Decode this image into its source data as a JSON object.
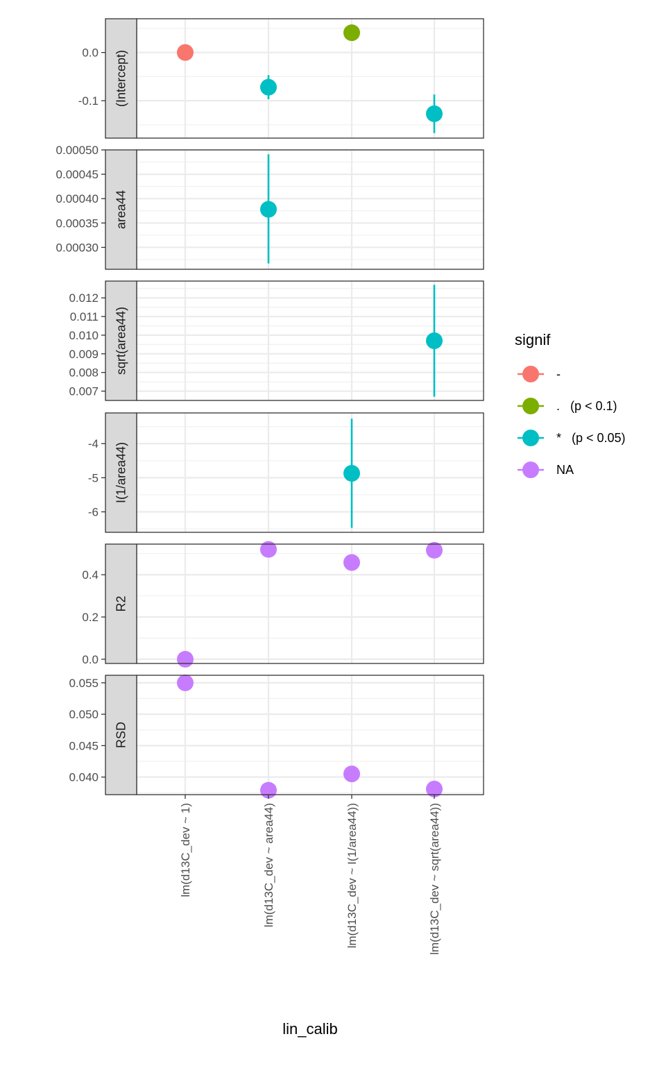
{
  "colors": {
    "-": "#F8766D",
    ".   (p < 0.1)": "#7CAE00",
    "*   (p < 0.05)": "#00BFC4",
    "NA": "#C77CFF"
  },
  "legend": {
    "title": "signif",
    "items": [
      "-",
      ".   (p < 0.1)",
      "*   (p < 0.05)",
      "NA"
    ]
  },
  "chart_data": {
    "type": "scatter",
    "xlabel": "lin_calib",
    "categories": [
      "lm(d13C_dev ~ 1)",
      "lm(d13C_dev ~ area44)",
      "lm(d13C_dev ~ I(1/area44))",
      "lm(d13C_dev ~ sqrt(area44))"
    ],
    "panels": [
      {
        "label": "(Intercept)",
        "ylim": [
          -0.1775,
          0.07
        ],
        "yticks": [
          -0.1,
          0.0
        ],
        "yticklabels": [
          "-0.1",
          "0.0"
        ],
        "points": [
          {
            "x": "lm(d13C_dev ~ 1)",
            "y": 0.0,
            "signif": "-"
          },
          {
            "x": "lm(d13C_dev ~ area44)",
            "y": -0.072,
            "lo": -0.097,
            "hi": -0.047,
            "signif": "*   (p < 0.05)"
          },
          {
            "x": "lm(d13C_dev ~ I(1/area44))",
            "y": 0.041,
            "signif": ".   (p < 0.1)"
          },
          {
            "x": "lm(d13C_dev ~ sqrt(area44))",
            "y": -0.127,
            "lo": -0.167,
            "hi": -0.087,
            "signif": "*   (p < 0.05)"
          }
        ]
      },
      {
        "label": "area44",
        "ylim": [
          0.000255,
          0.0005
        ],
        "yticks": [
          0.0003,
          0.00035,
          0.0004,
          0.00045,
          0.0005
        ],
        "yticklabels": [
          "0.00030",
          "0.00035",
          "0.00040",
          "0.00045",
          "0.00050"
        ],
        "points": [
          {
            "x": "lm(d13C_dev ~ area44)",
            "y": 0.000378,
            "lo": 0.000267,
            "hi": 0.000491,
            "signif": "*   (p < 0.05)"
          }
        ]
      },
      {
        "label": "sqrt(area44)",
        "ylim": [
          0.0065,
          0.0129
        ],
        "yticks": [
          0.007,
          0.008,
          0.009,
          0.01,
          0.011,
          0.012
        ],
        "yticklabels": [
          "0.007",
          "0.008",
          "0.009",
          "0.010",
          "0.011",
          "0.012"
        ],
        "points": [
          {
            "x": "lm(d13C_dev ~ sqrt(area44))",
            "y": 0.0097,
            "lo": 0.0067,
            "hi": 0.0127,
            "signif": "*   (p < 0.05)"
          }
        ]
      },
      {
        "label": "I(1/area44)",
        "ylim": [
          -6.6,
          -3.1
        ],
        "yticks": [
          -6,
          -5,
          -4
        ],
        "yticklabels": [
          "-6",
          "-5",
          "-4"
        ],
        "points": [
          {
            "x": "lm(d13C_dev ~ I(1/area44))",
            "y": -4.87,
            "lo": -6.47,
            "hi": -3.27,
            "signif": "*   (p < 0.05)"
          }
        ]
      },
      {
        "label": "R2",
        "ylim": [
          -0.02,
          0.545
        ],
        "yticks": [
          0.0,
          0.2,
          0.4
        ],
        "yticklabels": [
          "0.0",
          "0.2",
          "0.4"
        ],
        "points": [
          {
            "x": "lm(d13C_dev ~ 1)",
            "y": 0.0,
            "signif": "NA"
          },
          {
            "x": "lm(d13C_dev ~ area44)",
            "y": 0.52,
            "signif": "NA"
          },
          {
            "x": "lm(d13C_dev ~ I(1/area44))",
            "y": 0.458,
            "signif": "NA"
          },
          {
            "x": "lm(d13C_dev ~ sqrt(area44))",
            "y": 0.516,
            "signif": "NA"
          }
        ]
      },
      {
        "label": "RSD",
        "ylim": [
          0.0372,
          0.0562
        ],
        "yticks": [
          0.04,
          0.045,
          0.05,
          0.055
        ],
        "yticklabels": [
          "0.040",
          "0.045",
          "0.050",
          "0.055"
        ],
        "points": [
          {
            "x": "lm(d13C_dev ~ 1)",
            "y": 0.055,
            "signif": "NA"
          },
          {
            "x": "lm(d13C_dev ~ area44)",
            "y": 0.0379,
            "signif": "NA"
          },
          {
            "x": "lm(d13C_dev ~ I(1/area44))",
            "y": 0.0405,
            "signif": "NA"
          },
          {
            "x": "lm(d13C_dev ~ sqrt(area44))",
            "y": 0.0381,
            "signif": "NA"
          }
        ]
      }
    ]
  }
}
